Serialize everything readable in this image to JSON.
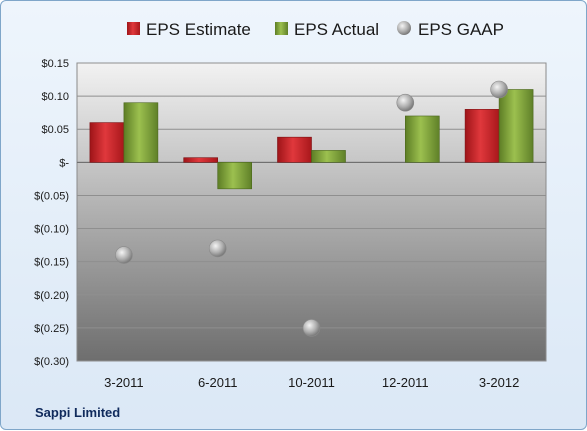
{
  "chart_data": {
    "type": "bar",
    "title": "",
    "company": "Sappi Limited",
    "categories": [
      "3-2011",
      "6-2011",
      "10-2011",
      "12-2011",
      "3-2012"
    ],
    "series": [
      {
        "name": "EPS Estimate",
        "kind": "bar",
        "color": "#cc1f24",
        "values": [
          0.06,
          0.007,
          0.038,
          null,
          0.08
        ]
      },
      {
        "name": "EPS Actual",
        "kind": "bar",
        "color": "#7fa33c",
        "values": [
          0.09,
          -0.04,
          0.018,
          0.07,
          0.11
        ]
      },
      {
        "name": "EPS GAAP",
        "kind": "marker",
        "color": "#b8b8b8",
        "values": [
          -0.14,
          -0.13,
          -0.25,
          0.09,
          0.11
        ]
      }
    ],
    "yticks": [
      "$0.15",
      "$0.10",
      "$0.05",
      "$-",
      "$(0.05)",
      "$(0.10)",
      "$(0.15)",
      "$(0.20)",
      "$(0.25)",
      "$(0.30)"
    ],
    "ylim": [
      -0.3,
      0.15
    ],
    "grid": true,
    "legend_position": "top"
  }
}
